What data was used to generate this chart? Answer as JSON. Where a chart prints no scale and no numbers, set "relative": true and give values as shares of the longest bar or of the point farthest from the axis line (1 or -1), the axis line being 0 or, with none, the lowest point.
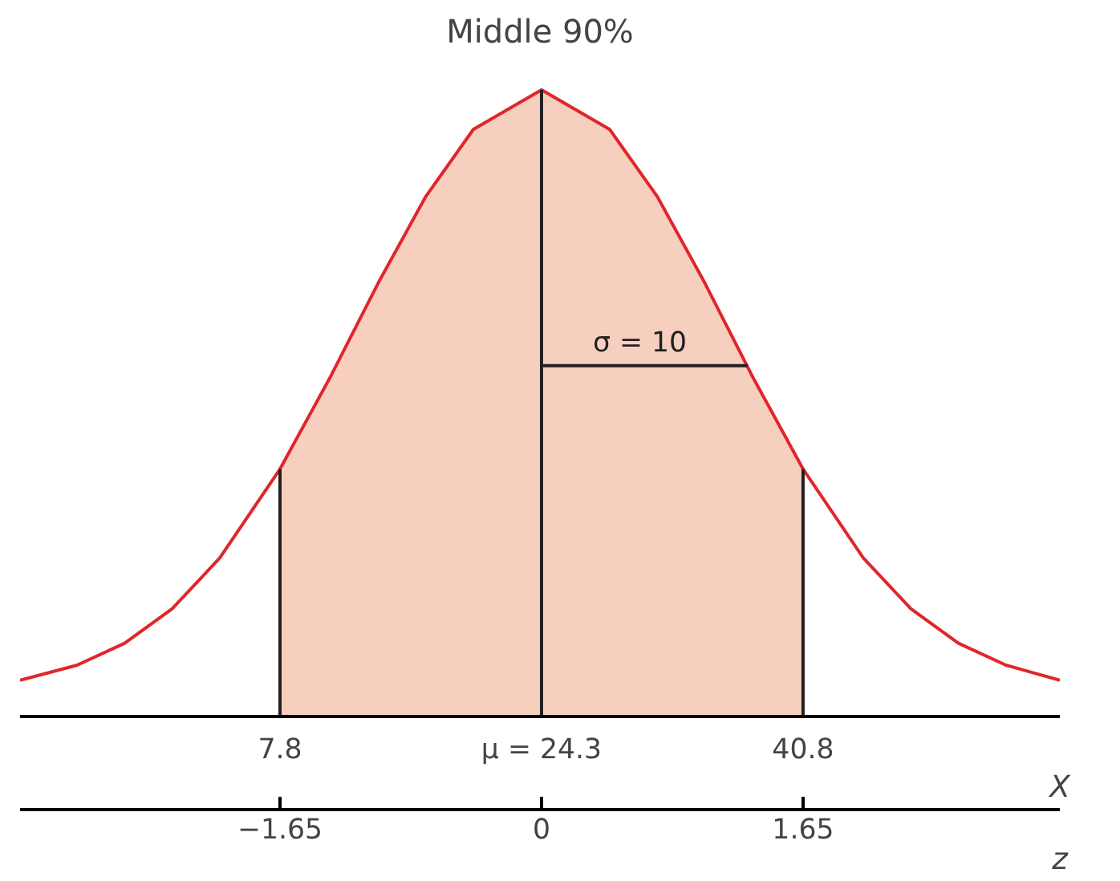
{
  "chart_data": {
    "type": "line",
    "title": "Middle 90%",
    "relative": true,
    "xlabel": "X",
    "x2label": "z",
    "xlim": [
      -8.6,
      57
    ],
    "xticks": [
      7.8,
      {
        "value": 24.3,
        "label": "μ = 24.3"
      },
      40.8
    ],
    "x2lim": [
      -3.29,
      3.27
    ],
    "x2ticks": [
      {
        "value": -1.65,
        "label": "−1.65"
      },
      0,
      1.65
    ],
    "series": [
      {
        "type": "area",
        "color": "#f7cfbf",
        "x": [
          7.8,
          11,
          14,
          17,
          20,
          24.3,
          28.6,
          31.6,
          34.6,
          37.6,
          40.8
        ],
        "values": [
          0.395,
          0.543,
          0.692,
          0.83,
          0.937,
          1,
          0.937,
          0.83,
          0.692,
          0.543,
          0.395
        ]
      },
      {
        "color": "#e0262a",
        "x": [
          -8.6,
          -5,
          -2,
          1,
          4,
          7.8,
          11,
          14,
          17,
          20,
          24.3,
          28.6,
          31.6,
          34.6,
          37.6,
          40.8,
          44.6,
          47.6,
          50.6,
          53.6,
          57
        ],
        "values": [
          0.058,
          0.082,
          0.117,
          0.172,
          0.253,
          0.395,
          0.543,
          0.692,
          0.83,
          0.937,
          1,
          0.937,
          0.83,
          0.692,
          0.543,
          0.395,
          0.253,
          0.172,
          0.117,
          0.082,
          0.058
        ]
      },
      {
        "color": "#231f20",
        "x": [
          24.3,
          37.3
        ],
        "values": [
          0.56,
          0.56
        ]
      }
    ],
    "ref_lines": [
      {
        "axis": "x",
        "value": 7.8,
        "color": "#231f20"
      },
      {
        "axis": "x",
        "value": 24.3,
        "color": "#231f20"
      },
      {
        "axis": "x",
        "value": 40.8,
        "color": "#231f20"
      }
    ],
    "annotations": [
      {
        "text": "σ = 10",
        "x": 30.5,
        "y": 0.56
      }
    ],
    "grid": false,
    "marker": "none",
    "line_style": "solid"
  }
}
